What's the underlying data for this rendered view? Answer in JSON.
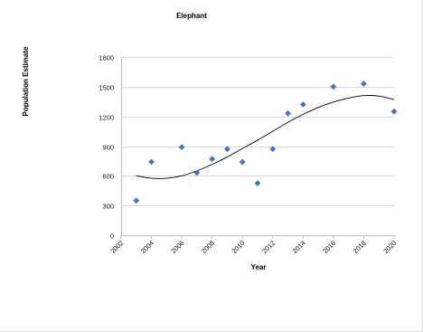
{
  "chart_data": {
    "type": "scatter",
    "title": "Elephant",
    "xlabel": "Year",
    "ylabel": "Population Estimate",
    "xlim": [
      2002,
      2020
    ],
    "ylim": [
      0,
      1800
    ],
    "x_ticks": [
      2002,
      2004,
      2006,
      2008,
      2010,
      2012,
      2014,
      2016,
      2018,
      2020
    ],
    "y_ticks": [
      0,
      300,
      600,
      900,
      1200,
      1500,
      1800
    ],
    "x_tick_labels": [
      "2002",
      "2004",
      "2006",
      "2008",
      "2010",
      "2012",
      "2014",
      "2016",
      "2018",
      "2020"
    ],
    "y_tick_labels": [
      "0",
      "300",
      "600",
      "900",
      "1200",
      "1500",
      "1800"
    ],
    "grid": "horizontal",
    "legend": "none",
    "series": [
      {
        "marker_color": "#4472c4",
        "points": [
          {
            "x": 2003,
            "y": 350
          },
          {
            "x": 2004,
            "y": 740
          },
          {
            "x": 2006,
            "y": 890
          },
          {
            "x": 2007,
            "y": 630
          },
          {
            "x": 2008,
            "y": 770
          },
          {
            "x": 2009,
            "y": 870
          },
          {
            "x": 2010,
            "y": 740
          },
          {
            "x": 2011,
            "y": 525
          },
          {
            "x": 2012,
            "y": 870
          },
          {
            "x": 2013,
            "y": 1230
          },
          {
            "x": 2014,
            "y": 1320
          },
          {
            "x": 2016,
            "y": 1500
          },
          {
            "x": 2018,
            "y": 1530
          },
          {
            "x": 2020,
            "y": 1250
          }
        ]
      }
    ],
    "trendline": {
      "type": "polynomial",
      "color": "#000000",
      "points": [
        {
          "x": 2003,
          "y": 600
        },
        {
          "x": 2004,
          "y": 575
        },
        {
          "x": 2005,
          "y": 575
        },
        {
          "x": 2006,
          "y": 600
        },
        {
          "x": 2007,
          "y": 650
        },
        {
          "x": 2008,
          "y": 715
        },
        {
          "x": 2009,
          "y": 790
        },
        {
          "x": 2010,
          "y": 875
        },
        {
          "x": 2011,
          "y": 960
        },
        {
          "x": 2012,
          "y": 1050
        },
        {
          "x": 2013,
          "y": 1140
        },
        {
          "x": 2014,
          "y": 1220
        },
        {
          "x": 2015,
          "y": 1290
        },
        {
          "x": 2016,
          "y": 1345
        },
        {
          "x": 2017,
          "y": 1385
        },
        {
          "x": 2018,
          "y": 1410
        },
        {
          "x": 2019,
          "y": 1405
        },
        {
          "x": 2020,
          "y": 1370
        }
      ]
    }
  }
}
